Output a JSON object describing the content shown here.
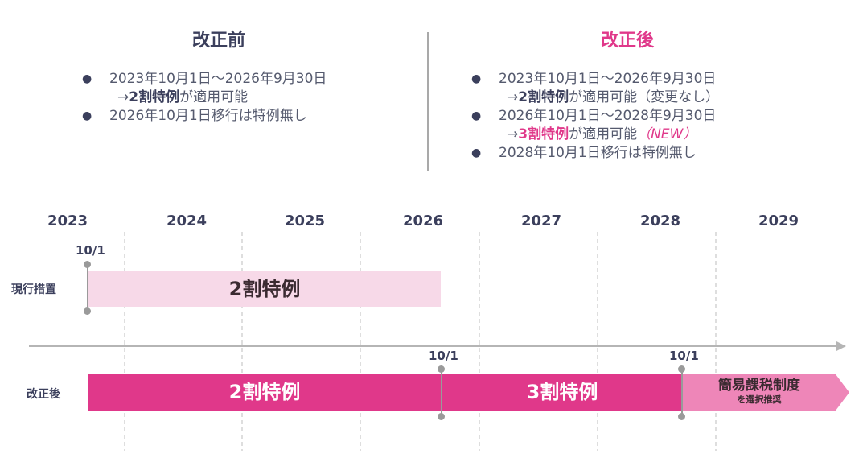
{
  "before": {
    "heading": "改正前",
    "bullets": [
      {
        "line1": "2023年10月1日〜2026年9月30日",
        "arrow": "→",
        "bold": "2割特例",
        "rest": "が適用可能"
      },
      {
        "line1": "2026年10月1日移行は特例無し"
      }
    ]
  },
  "after": {
    "heading": "改正後",
    "bullets": [
      {
        "line1": "2023年10月1日〜2026年9月30日",
        "arrow": "→",
        "bold": "2割特例",
        "rest": "が適用可能（変更なし）"
      },
      {
        "line1": "2026年10月1日〜2028年9月30日",
        "arrow": "→",
        "bold": "3割特例",
        "rest": "が適用可能",
        "note": "（NEW）"
      },
      {
        "line1": "2028年10月1日移行は特例無し"
      }
    ]
  },
  "timeline": {
    "years": [
      "2023",
      "2024",
      "2025",
      "2026",
      "2027",
      "2028",
      "2029"
    ],
    "current_label": "現行措置",
    "revised_label": "改正後",
    "markers": [
      "10/1",
      "10/1",
      "10/1"
    ],
    "current_bar": "2割特例",
    "revised_bars": [
      "2割特例",
      "3割特例"
    ],
    "arrow_title": "簡易課税制度",
    "arrow_sub": "を選択推奨"
  },
  "colors": {
    "text_dark": "#3b3f5c",
    "pink_light": "#f7d9e8",
    "pink_strong": "#e0388a",
    "pink_mid": "#ee86b8",
    "gray": "#9a9a9a"
  }
}
